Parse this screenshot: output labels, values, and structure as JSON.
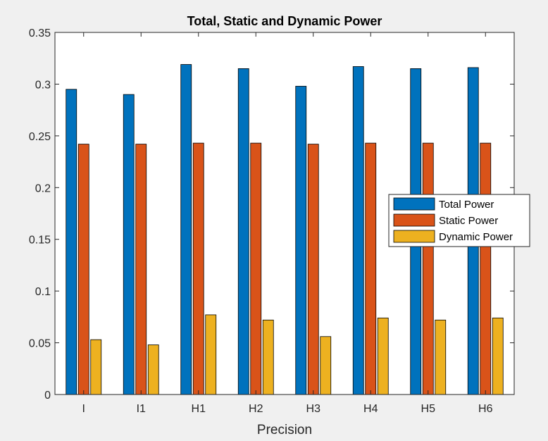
{
  "chart_data": {
    "type": "bar",
    "title": "Total, Static and Dynamic Power",
    "xlabel": "Precision",
    "ylabel": "",
    "ylim": [
      0,
      0.35
    ],
    "yticks": [
      "0",
      "0.05",
      "0.1",
      "0.15",
      "0.2",
      "0.25",
      "0.3",
      "0.35"
    ],
    "categories": [
      "I",
      "I1",
      "H1",
      "H2",
      "H3",
      "H4",
      "H5",
      "H6"
    ],
    "series": [
      {
        "name": "Total Power",
        "color": "#0072BD",
        "values": [
          0.295,
          0.29,
          0.319,
          0.315,
          0.298,
          0.317,
          0.315,
          0.316
        ]
      },
      {
        "name": "Static Power",
        "color": "#D95319",
        "values": [
          0.242,
          0.242,
          0.243,
          0.243,
          0.242,
          0.243,
          0.243,
          0.243
        ]
      },
      {
        "name": "Dynamic Power",
        "color": "#EDB120",
        "values": [
          0.053,
          0.048,
          0.077,
          0.072,
          0.056,
          0.074,
          0.072,
          0.074
        ]
      }
    ],
    "legend_position": "right",
    "grid": false
  }
}
